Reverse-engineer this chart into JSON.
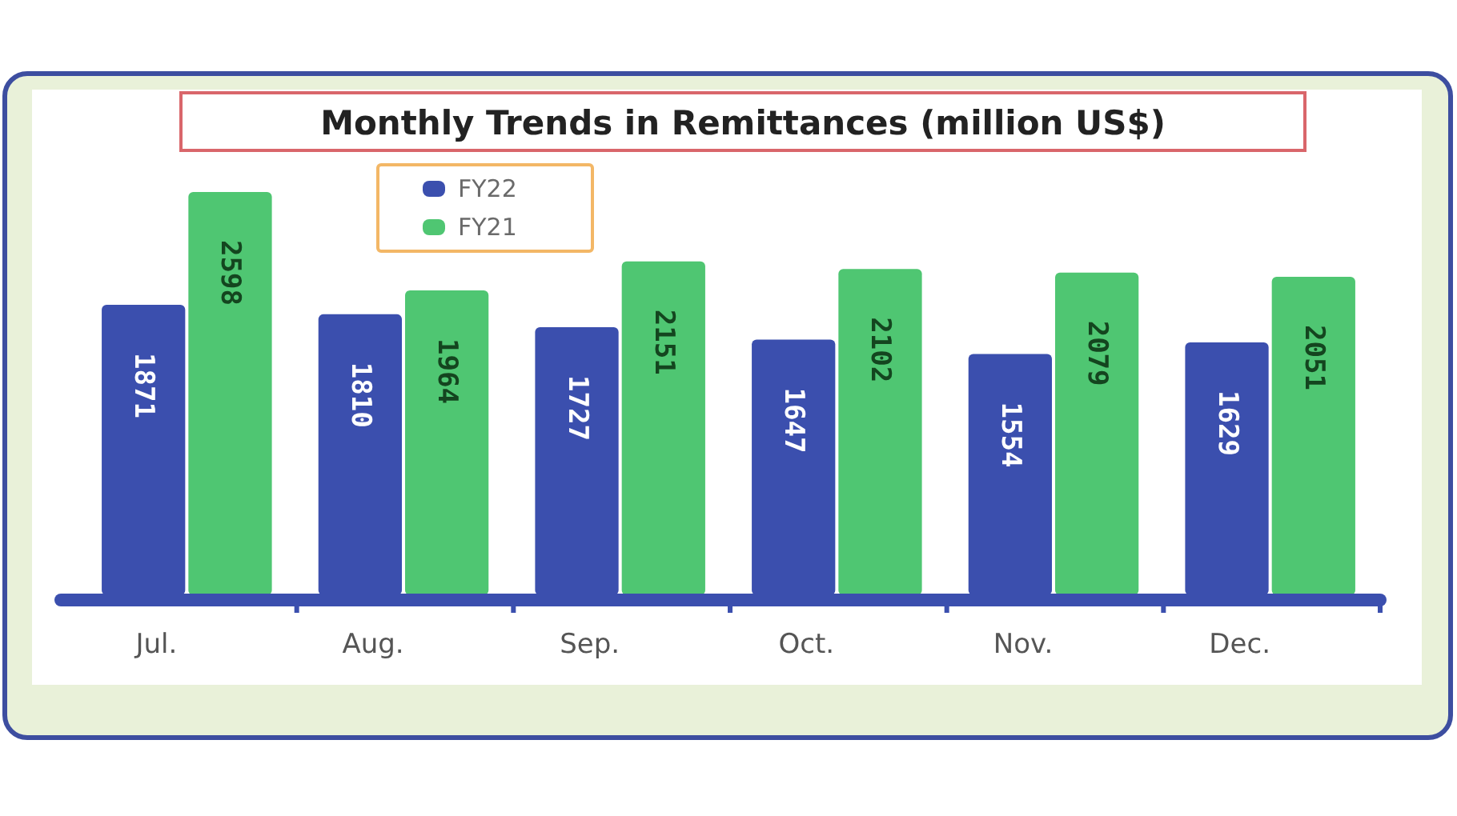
{
  "chart_data": {
    "type": "bar",
    "title": "Monthly Trends in Remittances (million US$)",
    "categories": [
      "Jul.",
      "Aug.",
      "Sep.",
      "Oct.",
      "Nov.",
      "Dec."
    ],
    "series": [
      {
        "name": "FY22",
        "color": "#3b4fae",
        "values": [
          1871,
          1810,
          1727,
          1647,
          1554,
          1629
        ]
      },
      {
        "name": "FY21",
        "color": "#4fc672",
        "values": [
          2598,
          1964,
          2151,
          2102,
          2079,
          2051
        ]
      }
    ],
    "data_labels": true,
    "legend": "top left"
  }
}
